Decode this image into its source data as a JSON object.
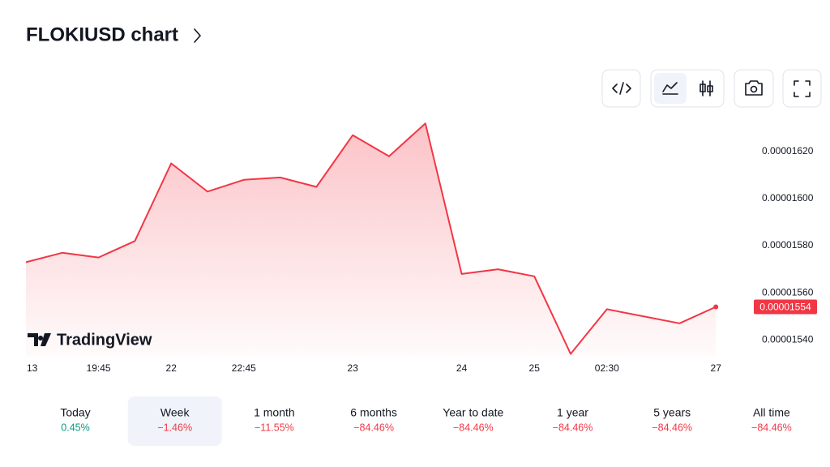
{
  "chart_data": {
    "type": "area",
    "title": "FLOKIUSD chart",
    "watermark": "TradingView",
    "categories": [
      "13",
      null,
      "19:45",
      null,
      "22",
      null,
      "22:45",
      null,
      null,
      "23",
      null,
      null,
      "24",
      null,
      "25",
      null,
      "02:30",
      null,
      null,
      "27"
    ],
    "values": [
      1.573e-05,
      1.577e-05,
      1.575e-05,
      1.582e-05,
      1.615e-05,
      1.603e-05,
      1.608e-05,
      1.609e-05,
      1.605e-05,
      1.627e-05,
      1.618e-05,
      1.632e-05,
      1.568e-05,
      1.57e-05,
      1.567e-05,
      1.534e-05,
      1.553e-05,
      1.55e-05,
      1.547e-05,
      1.554e-05
    ],
    "color": "#f23645",
    "ylim": [
      1.5328e-05,
      1.6362e-05
    ],
    "yticks": [
      {
        "value": 1.54e-05,
        "label": "0.00001540"
      },
      {
        "value": 1.56e-05,
        "label": "0.00001560"
      },
      {
        "value": 1.58e-05,
        "label": "0.00001580"
      },
      {
        "value": 1.6e-05,
        "label": "0.00001600"
      },
      {
        "value": 1.62e-05,
        "label": "0.00001620"
      }
    ],
    "grid": false
  },
  "periods": [
    {
      "label": "Today",
      "change": "0.45%"
    },
    {
      "label": "Week",
      "change": "−1.46%",
      "selected": true
    },
    {
      "label": "1 month",
      "change": "−11.55%"
    },
    {
      "label": "6 months",
      "change": "−84.46%"
    },
    {
      "label": "Year to date",
      "change": "−84.46%"
    },
    {
      "label": "1 year",
      "change": "−84.46%"
    },
    {
      "label": "5 years",
      "change": "−84.46%"
    },
    {
      "label": "All time",
      "change": "−84.46%"
    }
  ]
}
